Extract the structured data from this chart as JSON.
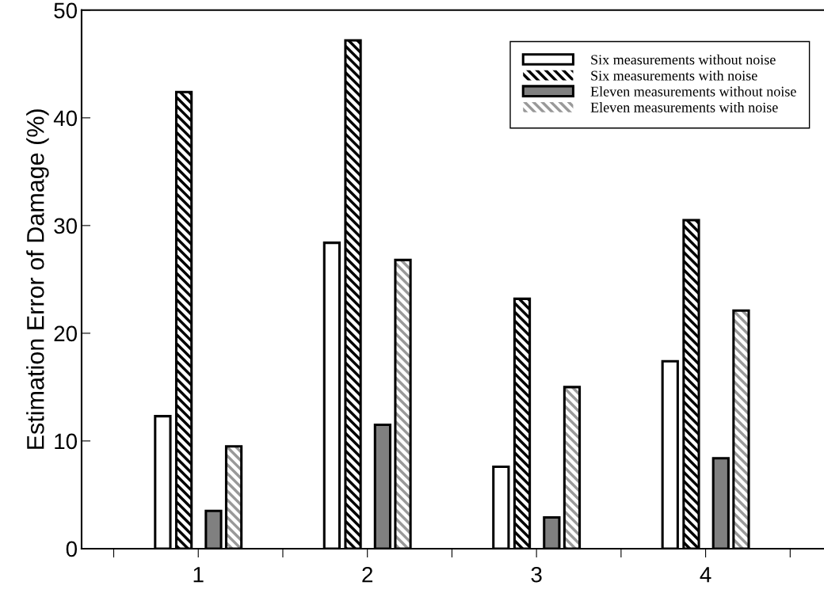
{
  "chart_data": {
    "type": "bar",
    "ylabel": "Estimation Error of Damage (%)",
    "x": [
      1,
      2,
      3,
      4
    ],
    "xlim": [
      0.31,
      4.7
    ],
    "xticks": [
      {
        "value": 0.5,
        "label": null
      },
      1,
      {
        "value": 1.5,
        "label": null
      },
      2,
      {
        "value": 2.5,
        "label": null
      },
      3,
      {
        "value": 3.5,
        "label": null
      },
      4,
      {
        "value": 4.5,
        "label": null
      }
    ],
    "ylim": [
      0,
      50
    ],
    "yticks": [
      0,
      10,
      20,
      30,
      40,
      50
    ],
    "grid": false,
    "legend": "top right",
    "series": [
      {
        "name": "Six measurements without noise",
        "color": "#ffffff",
        "values": [
          12.3,
          28.4,
          7.6,
          17.4
        ]
      },
      {
        "name": "Six measurements with noise",
        "color": "#000000",
        "values": [
          42.4,
          47.2,
          23.2,
          30.5
        ]
      },
      {
        "name": "Eleven measurements without noise",
        "color": "#808080",
        "values": [
          3.5,
          11.5,
          2.9,
          8.4
        ]
      },
      {
        "name": "Eleven measurements with noise",
        "color": "#999999",
        "values": [
          9.5,
          26.8,
          15.0,
          22.1
        ]
      }
    ]
  }
}
